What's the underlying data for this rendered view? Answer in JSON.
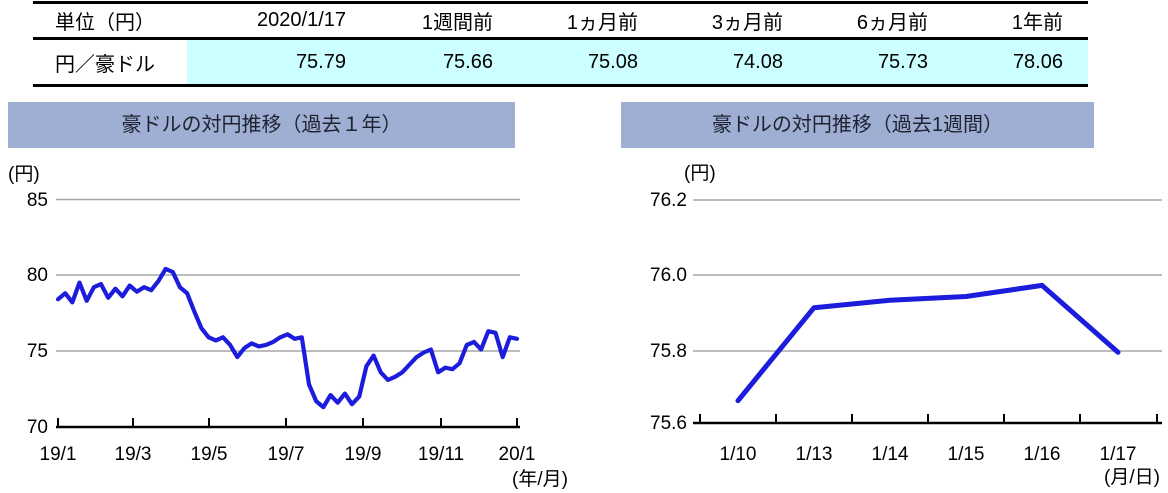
{
  "colors": {
    "banner": "#9FAFD4",
    "line": "#1C1CDC",
    "highlight": "#CCFFFF",
    "gridline": "#A6A6A6"
  },
  "table": {
    "headers": [
      "単位（円）",
      "2020/1/17",
      "1週間前",
      "1ヵ月前",
      "3ヵ月前",
      "6ヵ月前",
      "1年前"
    ],
    "row_label": "円／豪ドル",
    "values": [
      "75.79",
      "75.66",
      "75.08",
      "74.08",
      "75.73",
      "78.06"
    ]
  },
  "chart_data": [
    {
      "type": "line",
      "title": "豪ドルの対円推移（過去１年）",
      "y_unit": "(円)",
      "x_unit": "(年/月)",
      "x_tick_labels": [
        "19/1",
        "19/3",
        "19/5",
        "19/7",
        "19/9",
        "19/11",
        "20/1"
      ],
      "y_tick_labels": [
        "85",
        "80",
        "75",
        "70"
      ],
      "ylim": [
        70,
        85
      ],
      "grid": true,
      "legend": "none",
      "series": [
        {
          "name": "円／豪ドル",
          "values": [
            78.4,
            78.8,
            78.2,
            79.5,
            78.3,
            79.2,
            79.4,
            78.5,
            79.1,
            78.6,
            79.3,
            78.9,
            79.2,
            79.0,
            79.6,
            80.4,
            80.2,
            79.2,
            78.8,
            77.6,
            76.5,
            75.9,
            75.7,
            75.9,
            75.4,
            74.6,
            75.2,
            75.5,
            75.3,
            75.4,
            75.6,
            75.9,
            76.1,
            75.8,
            75.9,
            72.8,
            71.7,
            71.3,
            72.1,
            71.6,
            72.2,
            71.5,
            72.0,
            74.0,
            74.7,
            73.6,
            73.1,
            73.3,
            73.6,
            74.1,
            74.6,
            74.9,
            75.1,
            73.6,
            73.9,
            73.8,
            74.2,
            75.4,
            75.6,
            75.1,
            76.3,
            76.2,
            74.6,
            75.9,
            75.8
          ]
        }
      ]
    },
    {
      "type": "line",
      "title": "豪ドルの対円推移（過去1週間）",
      "y_unit": "(円)",
      "x_unit": "(月/日)",
      "categories": [
        "1/10",
        "1/13",
        "1/14",
        "1/15",
        "1/16",
        "1/17"
      ],
      "values": [
        75.66,
        75.91,
        75.93,
        75.94,
        75.97,
        75.79
      ],
      "y_tick_labels": [
        "76.2",
        "76.0",
        "75.8",
        "75.6"
      ],
      "ylim": [
        75.6,
        76.2
      ],
      "grid": true,
      "legend": "none"
    }
  ]
}
